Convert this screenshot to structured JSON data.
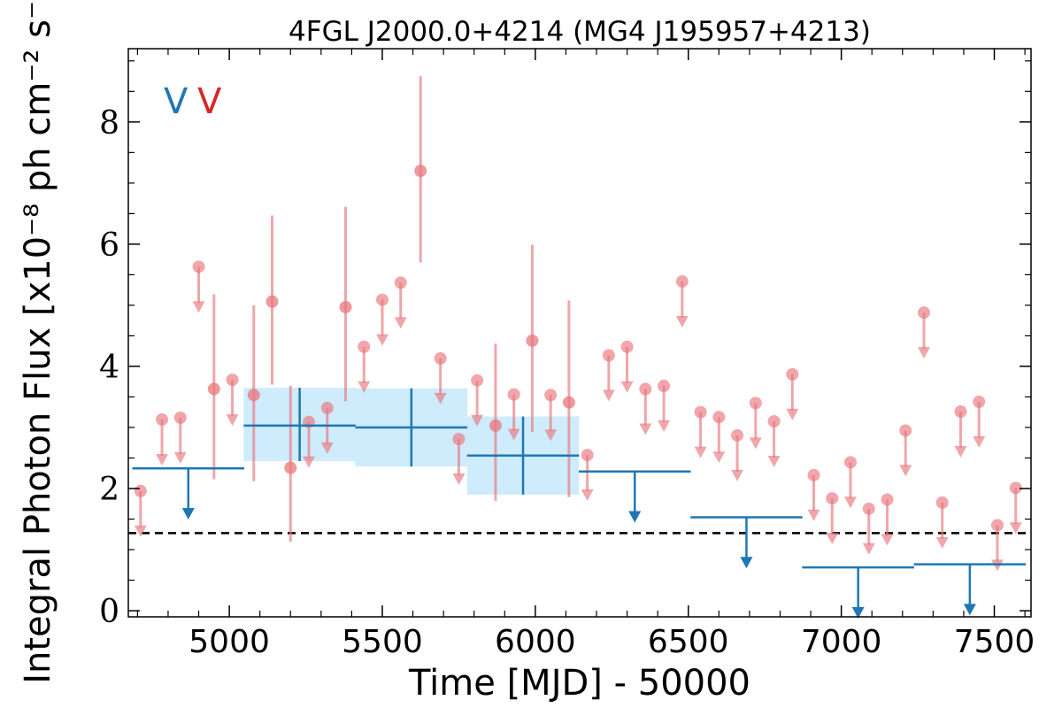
{
  "chart_data": {
    "type": "scatter",
    "title": "4FGL J2000.0+4214 (MG4 J195957+4213)",
    "xlabel": "Time [MJD] - 50000",
    "ylabel": "Integral Photon Flux [x10⁻⁸ ph cm⁻² s⁻¹]",
    "xlim": [
      4670,
      7620
    ],
    "ylim": [
      -0.1,
      9.2
    ],
    "x_ticks": [
      5000,
      5500,
      6000,
      6500,
      7000,
      7500
    ],
    "y_ticks": [
      0,
      2,
      4,
      6,
      8
    ],
    "grid": false,
    "legend": {
      "placement": "top-left",
      "entries": [
        {
          "symbol": "V",
          "color": "#1f77b4"
        },
        {
          "symbol": "V",
          "color": "#d62728"
        }
      ]
    },
    "reference_line": {
      "y": 1.27,
      "style": "dashed",
      "color": "#000000"
    },
    "series": [
      {
        "marker": "binned",
        "color": "#1f77b4",
        "band_color": "#c6e9fb",
        "detections": [
          {
            "x": 5230,
            "xerr": 183,
            "y": 3.03,
            "ylo": 2.45,
            "yhi": 3.65
          },
          {
            "x": 5595,
            "xerr": 183,
            "y": 3.0,
            "ylo": 2.36,
            "yhi": 3.64
          },
          {
            "x": 5960,
            "xerr": 183,
            "y": 2.54,
            "ylo": 1.9,
            "yhi": 3.18
          }
        ],
        "upper_limits": [
          {
            "x": 4866,
            "xerr": 183,
            "y": 2.33
          },
          {
            "x": 6325,
            "xerr": 183,
            "y": 2.28
          },
          {
            "x": 6690,
            "xerr": 183,
            "y": 1.53
          },
          {
            "x": 7055,
            "xerr": 183,
            "y": 0.71
          },
          {
            "x": 7420,
            "xerr": 183,
            "y": 0.76
          }
        ]
      },
      {
        "marker": "circle",
        "color": "#e8777c",
        "detections": [
          {
            "x": 4950,
            "y": 3.63,
            "ylo": 2.15,
            "yhi": 5.18
          },
          {
            "x": 5080,
            "y": 3.53,
            "ylo": 2.12,
            "yhi": 5.0
          },
          {
            "x": 5140,
            "y": 5.06,
            "ylo": 3.7,
            "yhi": 6.47
          },
          {
            "x": 5200,
            "y": 2.34,
            "ylo": 1.13,
            "yhi": 3.68
          },
          {
            "x": 5380,
            "y": 4.97,
            "ylo": 3.43,
            "yhi": 6.61
          },
          {
            "x": 5625,
            "y": 7.2,
            "ylo": 5.7,
            "yhi": 8.75
          },
          {
            "x": 5870,
            "y": 3.03,
            "ylo": 1.8,
            "yhi": 4.37
          },
          {
            "x": 5990,
            "y": 4.42,
            "ylo": 2.93,
            "yhi": 5.99
          },
          {
            "x": 6110,
            "y": 3.41,
            "ylo": 1.86,
            "yhi": 5.08
          }
        ],
        "upper_limits": [
          {
            "x": 4710,
            "y": 1.96
          },
          {
            "x": 4780,
            "y": 3.13
          },
          {
            "x": 4840,
            "y": 3.16
          },
          {
            "x": 4900,
            "y": 5.63
          },
          {
            "x": 5010,
            "y": 3.78
          },
          {
            "x": 5260,
            "y": 3.09
          },
          {
            "x": 5320,
            "y": 3.32
          },
          {
            "x": 5440,
            "y": 4.32
          },
          {
            "x": 5500,
            "y": 5.09
          },
          {
            "x": 5560,
            "y": 5.37
          },
          {
            "x": 5690,
            "y": 4.13
          },
          {
            "x": 5750,
            "y": 2.81
          },
          {
            "x": 5810,
            "y": 3.77
          },
          {
            "x": 5930,
            "y": 3.54
          },
          {
            "x": 6050,
            "y": 3.53
          },
          {
            "x": 6170,
            "y": 2.55
          },
          {
            "x": 6240,
            "y": 4.18
          },
          {
            "x": 6300,
            "y": 4.32
          },
          {
            "x": 6360,
            "y": 3.63
          },
          {
            "x": 6420,
            "y": 3.68
          },
          {
            "x": 6480,
            "y": 5.39
          },
          {
            "x": 6540,
            "y": 3.25
          },
          {
            "x": 6600,
            "y": 3.17
          },
          {
            "x": 6660,
            "y": 2.87
          },
          {
            "x": 6720,
            "y": 3.4
          },
          {
            "x": 6780,
            "y": 3.1
          },
          {
            "x": 6840,
            "y": 3.87
          },
          {
            "x": 6910,
            "y": 2.22
          },
          {
            "x": 6970,
            "y": 1.84
          },
          {
            "x": 7030,
            "y": 2.43
          },
          {
            "x": 7090,
            "y": 1.67
          },
          {
            "x": 7150,
            "y": 1.82
          },
          {
            "x": 7210,
            "y": 2.95
          },
          {
            "x": 7270,
            "y": 4.88
          },
          {
            "x": 7330,
            "y": 1.77
          },
          {
            "x": 7390,
            "y": 3.26
          },
          {
            "x": 7450,
            "y": 3.42
          },
          {
            "x": 7510,
            "y": 1.4
          },
          {
            "x": 7570,
            "y": 2.01
          }
        ]
      }
    ]
  }
}
